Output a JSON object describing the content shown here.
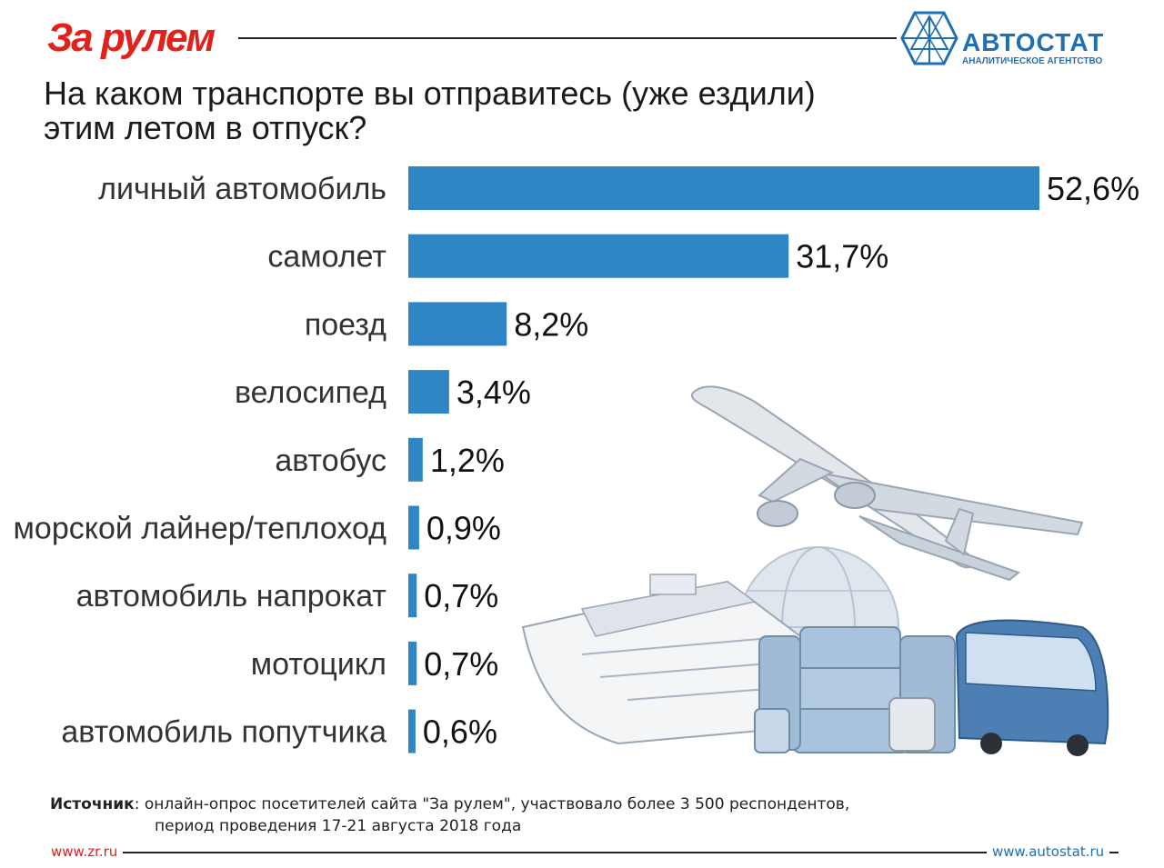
{
  "header": {
    "brand_left": "За рулем",
    "brand_right": "АВТОСТАТ",
    "brand_right_sub": "АНАЛИТИЧЕСКОЕ АГЕНТСТВО"
  },
  "question": {
    "line1": "На каком транспорте вы отправитесь (уже ездили)",
    "line2": "этим летом в отпуск?"
  },
  "chart_data": {
    "type": "bar",
    "orientation": "horizontal",
    "categories": [
      "личный автомобиль",
      "самолет",
      "поезд",
      "велосипед",
      "автобус",
      "морской лайнер/теплоход",
      "автомобиль напрокат",
      "мотоцикл",
      "автомобиль попутчика"
    ],
    "values": [
      52.6,
      31.7,
      8.2,
      3.4,
      1.2,
      0.9,
      0.7,
      0.7,
      0.6
    ],
    "value_labels": [
      "52,6%",
      "31,7%",
      "8,2%",
      "3,4%",
      "1,2%",
      "0,9%",
      "0,7%",
      "0,7%",
      "0,6%"
    ],
    "bar_color": "#2f86c6",
    "xlim": [
      0,
      52.6
    ],
    "grid": false,
    "legend": "none"
  },
  "footer": {
    "source_label": "Источник",
    "source_text": ": онлайн-опрос посетителей сайта \"За рулем\", участвовало более 3 500 респондентов,",
    "source_line2": "период проведения 17-21 августа 2018 года",
    "url_left": "www.zr.ru",
    "url_right": "www.autostat.ru"
  },
  "colors": {
    "accent_red": "#e3211c",
    "accent_blue": "#1f6fb5",
    "bar": "#2f86c6"
  },
  "illustration": {
    "icons": [
      "airplane-icon",
      "globe-icon",
      "cruise-ship-icon",
      "suitcase-icon",
      "bus-icon"
    ]
  }
}
